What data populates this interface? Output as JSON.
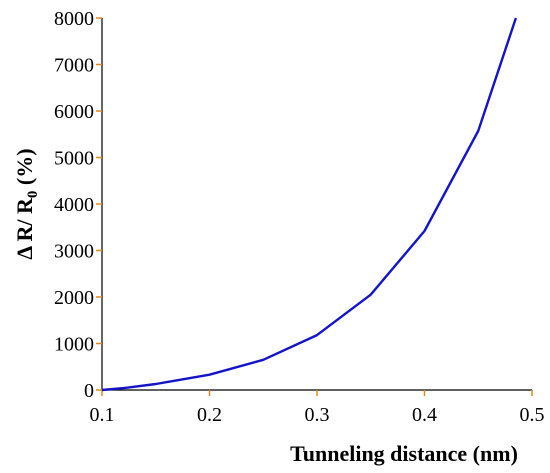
{
  "chart_data": {
    "type": "line",
    "title": "",
    "xlabel": "Tunneling distance (nm)",
    "ylabel_parts": {
      "main": "Δ R/ R",
      "sub": "0",
      "tail": " (%)"
    },
    "xlim": [
      0.1,
      0.5
    ],
    "ylim": [
      0,
      8000
    ],
    "x_ticks": [
      0.1,
      0.2,
      0.3,
      0.4,
      0.5
    ],
    "x_tick_labels": [
      "0.1",
      "0.2",
      "0.3",
      "0.4",
      "0.5"
    ],
    "y_ticks": [
      0,
      1000,
      2000,
      3000,
      4000,
      5000,
      6000,
      7000,
      8000
    ],
    "y_tick_labels": [
      "0",
      "1000",
      "2000",
      "3000",
      "4000",
      "5000",
      "6000",
      "7000",
      "8000"
    ],
    "grid": false,
    "series": [
      {
        "color": "#1414c8",
        "x": [
          0.1,
          0.12,
          0.15,
          0.2,
          0.25,
          0.3,
          0.35,
          0.4,
          0.45,
          0.485
        ],
        "y": [
          0,
          40,
          130,
          330,
          650,
          1180,
          2050,
          3420,
          5570,
          8000
        ]
      }
    ],
    "colors": {
      "axis": "#000000",
      "tick": "#e08a1e"
    }
  }
}
